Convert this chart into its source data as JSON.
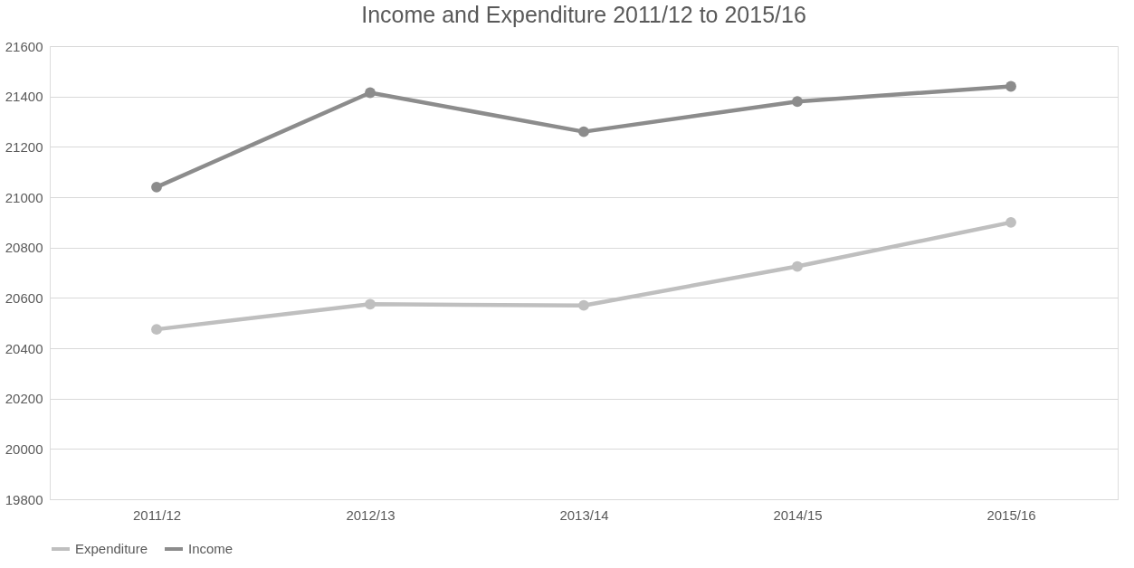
{
  "chart_data": {
    "type": "line",
    "title": "Income and Expenditure 2011/12 to 2015/16",
    "categories": [
      "2011/12",
      "2012/13",
      "2013/14",
      "2014/15",
      "2015/16"
    ],
    "series": [
      {
        "name": "Expenditure",
        "color": "#bfbfbf",
        "values": [
          20475,
          20575,
          20570,
          20725,
          20900
        ]
      },
      {
        "name": "Income",
        "color": "#8c8c8c",
        "values": [
          21040,
          21415,
          21260,
          21380,
          21440
        ]
      }
    ],
    "ylim": [
      19800,
      21600
    ],
    "yticks": [
      19800,
      20000,
      20200,
      20400,
      20600,
      20800,
      21000,
      21200,
      21400,
      21600
    ],
    "grid": "y",
    "legend": "bottom",
    "marker": "circle",
    "line_style": "solid"
  }
}
